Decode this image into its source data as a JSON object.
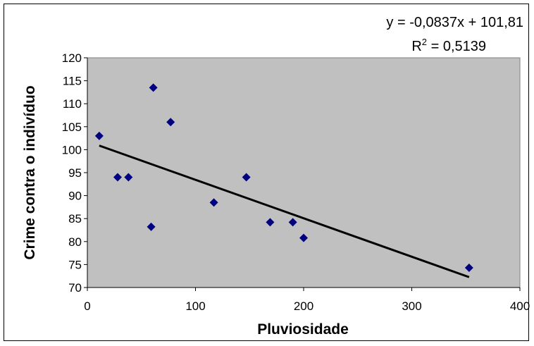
{
  "chart_data": {
    "type": "scatter",
    "title": "",
    "xlabel": "Pluviosidade",
    "ylabel": "Crime contra o indivíduo",
    "xlim": [
      0,
      400
    ],
    "ylim": [
      70,
      120
    ],
    "xticks": [
      "0",
      "100",
      "200",
      "300",
      "400"
    ],
    "yticks": [
      "70",
      "75",
      "80",
      "85",
      "90",
      "95",
      "100",
      "105",
      "110",
      "115",
      "120"
    ],
    "grid": false,
    "plot_background": "#c0c0c0",
    "marker_color": "#000080",
    "marker": "diamond",
    "points": [
      {
        "x": 11,
        "y": 103
      },
      {
        "x": 28,
        "y": 94
      },
      {
        "x": 38,
        "y": 94
      },
      {
        "x": 59,
        "y": 83.2
      },
      {
        "x": 61,
        "y": 113.5
      },
      {
        "x": 77,
        "y": 106
      },
      {
        "x": 117,
        "y": 88.5
      },
      {
        "x": 147,
        "y": 94
      },
      {
        "x": 169,
        "y": 84.2
      },
      {
        "x": 190,
        "y": 84.2
      },
      {
        "x": 200,
        "y": 80.8
      },
      {
        "x": 353,
        "y": 74.3
      }
    ],
    "trendline": {
      "type": "linear",
      "slope": -0.0837,
      "intercept": 101.81,
      "x_range": [
        11,
        353
      ],
      "color": "#000000",
      "equation_text": "y = -0,0837x + 101,81",
      "r2_prefix": "R",
      "r2_sup": "2",
      "r2_suffix": " = 0,5139"
    }
  }
}
